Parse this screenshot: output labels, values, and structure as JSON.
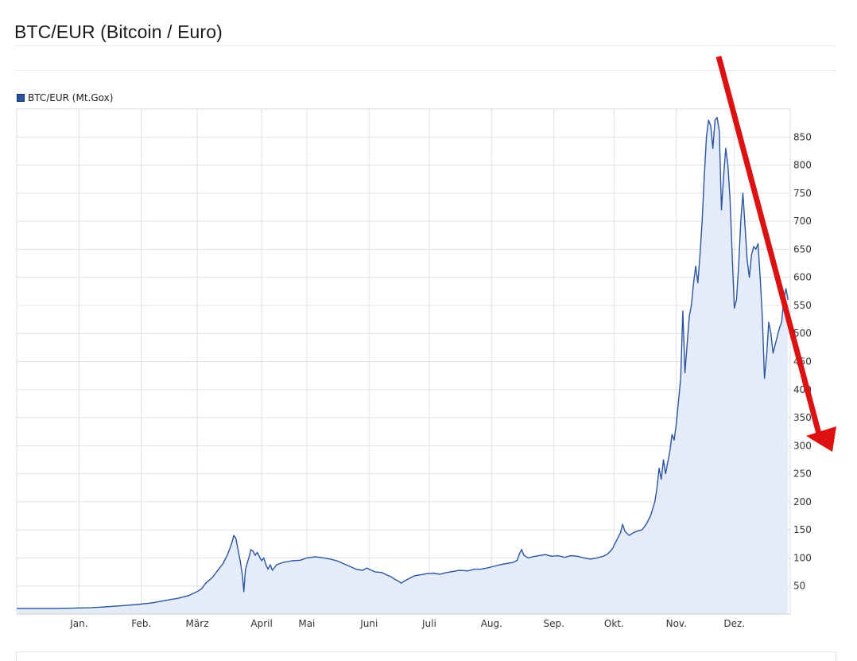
{
  "page": {
    "title": "BTC/EUR (Bitcoin / Euro)"
  },
  "chart_data": {
    "type": "area",
    "series": [
      {
        "name": "BTC/EUR (Mt.Gox)",
        "color": "#2c55a0",
        "fill": "#e3ecf8",
        "points": [
          [
            0,
            10
          ],
          [
            18,
            10
          ],
          [
            25,
            10.5
          ],
          [
            31,
            11
          ],
          [
            35,
            11.5
          ],
          [
            42,
            13
          ],
          [
            49,
            15
          ],
          [
            56,
            17
          ],
          [
            63,
            20
          ],
          [
            70,
            25
          ],
          [
            75,
            28
          ],
          [
            80,
            33
          ],
          [
            84,
            40
          ],
          [
            86,
            45
          ],
          [
            88,
            55
          ],
          [
            91,
            65
          ],
          [
            94,
            80
          ],
          [
            96,
            90
          ],
          [
            98,
            105
          ],
          [
            100,
            125
          ],
          [
            101,
            140
          ],
          [
            102,
            135
          ],
          [
            103,
            115
          ],
          [
            104,
            95
          ],
          [
            105,
            70
          ],
          [
            105.7,
            40
          ],
          [
            106.5,
            80
          ],
          [
            108,
            100
          ],
          [
            109,
            115
          ],
          [
            110,
            112
          ],
          [
            111,
            105
          ],
          [
            112,
            110
          ],
          [
            113,
            102
          ],
          [
            114,
            95
          ],
          [
            115,
            100
          ],
          [
            116,
            88
          ],
          [
            117,
            80
          ],
          [
            118,
            88
          ],
          [
            119,
            78
          ],
          [
            121,
            88
          ],
          [
            124,
            92
          ],
          [
            128,
            95
          ],
          [
            132,
            96
          ],
          [
            135,
            100
          ],
          [
            139,
            102
          ],
          [
            143,
            100
          ],
          [
            146,
            98
          ],
          [
            149,
            95
          ],
          [
            152,
            90
          ],
          [
            155,
            85
          ],
          [
            158,
            80
          ],
          [
            161,
            78
          ],
          [
            163,
            82
          ],
          [
            165,
            78
          ],
          [
            167,
            75
          ],
          [
            170,
            74
          ],
          [
            172,
            70
          ],
          [
            174,
            67
          ],
          [
            176,
            62
          ],
          [
            178,
            58
          ],
          [
            179,
            55
          ],
          [
            180,
            58
          ],
          [
            182,
            62
          ],
          [
            185,
            68
          ],
          [
            188,
            70
          ],
          [
            191,
            72
          ],
          [
            194,
            73
          ],
          [
            197,
            71
          ],
          [
            200,
            74
          ],
          [
            203,
            76
          ],
          [
            206,
            78
          ],
          [
            210,
            77
          ],
          [
            213,
            80
          ],
          [
            216,
            80
          ],
          [
            219,
            82
          ],
          [
            222,
            85
          ],
          [
            225,
            88
          ],
          [
            228,
            90
          ],
          [
            231,
            92
          ],
          [
            233,
            96
          ],
          [
            234,
            108
          ],
          [
            235,
            115
          ],
          [
            236,
            105
          ],
          [
            238,
            100
          ],
          [
            240,
            102
          ],
          [
            243,
            104
          ],
          [
            246,
            106
          ],
          [
            249,
            103
          ],
          [
            252,
            104
          ],
          [
            255,
            101
          ],
          [
            258,
            104
          ],
          [
            261,
            103
          ],
          [
            264,
            100
          ],
          [
            267,
            98
          ],
          [
            270,
            100
          ],
          [
            273,
            103
          ],
          [
            275,
            107
          ],
          [
            277,
            115
          ],
          [
            279,
            130
          ],
          [
            281,
            145
          ],
          [
            282,
            160
          ],
          [
            283,
            148
          ],
          [
            285,
            140
          ],
          [
            287,
            145
          ],
          [
            289,
            148
          ],
          [
            291,
            150
          ],
          [
            293,
            160
          ],
          [
            295,
            175
          ],
          [
            297,
            200
          ],
          [
            298,
            225
          ],
          [
            299,
            260
          ],
          [
            300,
            240
          ],
          [
            301,
            275
          ],
          [
            302,
            250
          ],
          [
            303,
            270
          ],
          [
            304,
            290
          ],
          [
            305,
            320
          ],
          [
            306,
            310
          ],
          [
            307,
            340
          ],
          [
            308,
            380
          ],
          [
            309,
            420
          ],
          [
            310,
            540
          ],
          [
            311,
            430
          ],
          [
            312,
            480
          ],
          [
            313,
            530
          ],
          [
            314,
            550
          ],
          [
            315,
            590
          ],
          [
            316,
            620
          ],
          [
            317,
            590
          ],
          [
            318,
            640
          ],
          [
            319,
            700
          ],
          [
            320,
            780
          ],
          [
            321,
            850
          ],
          [
            322,
            880
          ],
          [
            323,
            870
          ],
          [
            324,
            830
          ],
          [
            325,
            880
          ],
          [
            326,
            885
          ],
          [
            327,
            860
          ],
          [
            328,
            720
          ],
          [
            329,
            780
          ],
          [
            330,
            830
          ],
          [
            331,
            800
          ],
          [
            332,
            740
          ],
          [
            333,
            640
          ],
          [
            334,
            545
          ],
          [
            335,
            560
          ],
          [
            336,
            620
          ],
          [
            337,
            700
          ],
          [
            338,
            750
          ],
          [
            339,
            690
          ],
          [
            340,
            630
          ],
          [
            341,
            600
          ],
          [
            342,
            640
          ],
          [
            343,
            655
          ],
          [
            344,
            650
          ],
          [
            345,
            660
          ],
          [
            346,
            600
          ],
          [
            347,
            530
          ],
          [
            348,
            420
          ],
          [
            349,
            460
          ],
          [
            350,
            520
          ],
          [
            351,
            500
          ],
          [
            352,
            465
          ],
          [
            353,
            480
          ],
          [
            354,
            495
          ],
          [
            355,
            510
          ],
          [
            356,
            520
          ],
          [
            357,
            560
          ],
          [
            358,
            580
          ],
          [
            359,
            560
          ]
        ]
      }
    ],
    "x_axis": {
      "ticks": [
        {
          "label": "Jan.",
          "day": 29
        },
        {
          "label": "Feb.",
          "day": 58
        },
        {
          "label": "März",
          "day": 84
        },
        {
          "label": "April",
          "day": 114
        },
        {
          "label": "Mai",
          "day": 135
        },
        {
          "label": "Juni",
          "day": 164
        },
        {
          "label": "Juli",
          "day": 192
        },
        {
          "label": "Aug.",
          "day": 221
        },
        {
          "label": "Sep.",
          "day": 250
        },
        {
          "label": "Okt.",
          "day": 278
        },
        {
          "label": "Nov.",
          "day": 307
        },
        {
          "label": "Dez.",
          "day": 334
        }
      ],
      "range": [
        0,
        360
      ]
    },
    "y_axis": {
      "ticks": [
        50,
        100,
        150,
        200,
        250,
        300,
        350,
        400,
        450,
        500,
        550,
        600,
        650,
        700,
        750,
        800,
        850
      ],
      "range": [
        0,
        900
      ]
    },
    "grid": true,
    "legend": "top-left",
    "annotation": {
      "type": "arrow",
      "color": "#dd1111",
      "direction": "down-right"
    }
  }
}
